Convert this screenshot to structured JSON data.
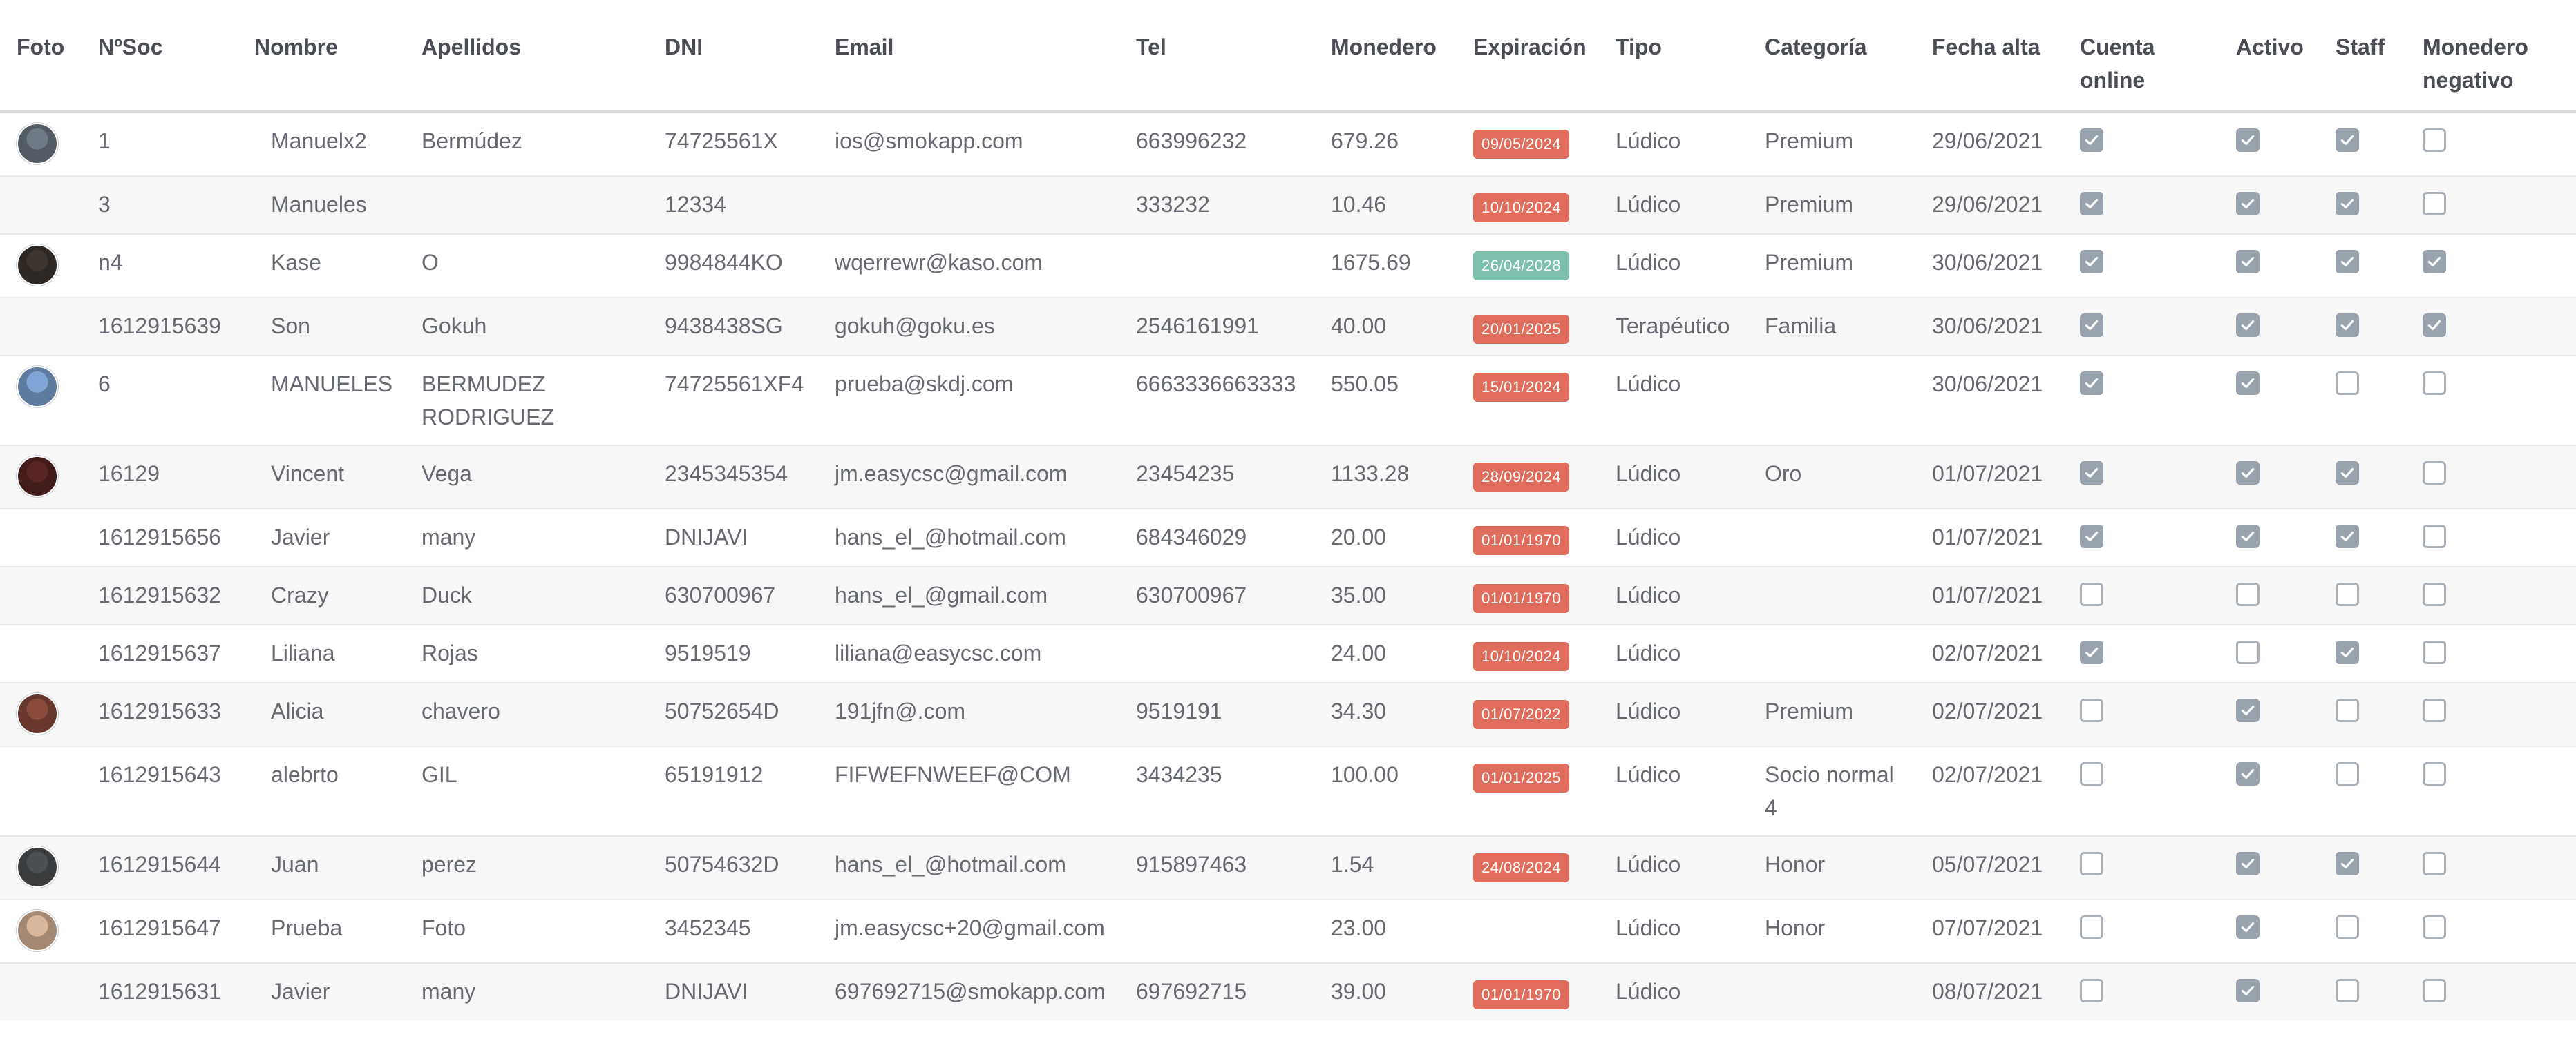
{
  "colors": {
    "expired": "#e06c5c",
    "valid": "#7cc0ad",
    "checkbox_on": "#98a3ad"
  },
  "columns": [
    {
      "key": "foto",
      "label": "Foto"
    },
    {
      "key": "nsoc",
      "label": "NºSoc"
    },
    {
      "key": "nombre",
      "label": "Nombre"
    },
    {
      "key": "apellidos",
      "label": "Apellidos"
    },
    {
      "key": "dni",
      "label": "DNI"
    },
    {
      "key": "email",
      "label": "Email"
    },
    {
      "key": "tel",
      "label": "Tel"
    },
    {
      "key": "monedero",
      "label": "Monedero"
    },
    {
      "key": "expiracion",
      "label": "Expiración"
    },
    {
      "key": "tipo",
      "label": "Tipo"
    },
    {
      "key": "categoria",
      "label": "Categoría"
    },
    {
      "key": "fecha_alta",
      "label": "Fecha alta"
    },
    {
      "key": "cuenta_online",
      "label": "Cuenta online"
    },
    {
      "key": "activo",
      "label": "Activo"
    },
    {
      "key": "staff",
      "label": "Staff"
    },
    {
      "key": "monedero_negativo",
      "label": "Monedero negativo"
    }
  ],
  "rows": [
    {
      "avatar": "#6f7a86",
      "nsoc": "1",
      "nombre": "Manuelx2",
      "apellidos": "Bermúdez",
      "dni": "74725561X",
      "email": "ios@smokapp.com",
      "tel": "663996232",
      "monedero": "679.26",
      "expiracion": "09/05/2024",
      "exp_status": "expired",
      "tipo": "Lúdico",
      "categoria": "Premium",
      "fecha_alta": "29/06/2021",
      "cuenta_online": true,
      "activo": true,
      "staff": true,
      "monedero_negativo": false
    },
    {
      "avatar": null,
      "nsoc": "3",
      "nombre": "Manueles",
      "apellidos": "",
      "dni": "12334",
      "email": "",
      "tel": "333232",
      "monedero": "10.46",
      "expiracion": "10/10/2024",
      "exp_status": "expired",
      "tipo": "Lúdico",
      "categoria": "Premium",
      "fecha_alta": "29/06/2021",
      "cuenta_online": true,
      "activo": true,
      "staff": true,
      "monedero_negativo": false
    },
    {
      "avatar": "#3c3530",
      "nsoc": "n4",
      "nombre": "Kase",
      "apellidos": "O",
      "dni": "9984844KO",
      "email": "wqerrewr@kaso.com",
      "tel": "",
      "monedero": "1675.69",
      "expiracion": "26/04/2028",
      "exp_status": "valid",
      "tipo": "Lúdico",
      "categoria": "Premium",
      "fecha_alta": "30/06/2021",
      "cuenta_online": true,
      "activo": true,
      "staff": true,
      "monedero_negativo": true
    },
    {
      "avatar": null,
      "nsoc": "1612915639",
      "nombre": "Son",
      "apellidos": "Gokuh",
      "dni": "9438438SG",
      "email": "gokuh@goku.es",
      "tel": "2546161991",
      "monedero": "40.00",
      "expiracion": "20/01/2025",
      "exp_status": "expired",
      "tipo": "Terapéutico",
      "categoria": "Familia",
      "fecha_alta": "30/06/2021",
      "cuenta_online": true,
      "activo": true,
      "staff": true,
      "monedero_negativo": true
    },
    {
      "avatar": "#7ea6d6",
      "nsoc": "6",
      "nombre": "MANUELES",
      "apellidos": "BERMUDEZ RODRIGUEZ",
      "dni": "74725561XF4",
      "email": "prueba@skdj.com",
      "tel": "6663336663333",
      "monedero": "550.05",
      "expiracion": "15/01/2024",
      "exp_status": "expired",
      "tipo": "Lúdico",
      "categoria": "",
      "fecha_alta": "30/06/2021",
      "cuenta_online": true,
      "activo": true,
      "staff": false,
      "monedero_negativo": false
    },
    {
      "avatar": "#5a2424",
      "nsoc": "16129",
      "nombre": "Vincent",
      "apellidos": "Vega",
      "dni": "2345345354",
      "email": "jm.easycsc@gmail.com",
      "tel": "23454235",
      "monedero": "1133.28",
      "expiracion": "28/09/2024",
      "exp_status": "expired",
      "tipo": "Lúdico",
      "categoria": "Oro",
      "fecha_alta": "01/07/2021",
      "cuenta_online": true,
      "activo": true,
      "staff": true,
      "monedero_negativo": false
    },
    {
      "avatar": null,
      "nsoc": "1612915656",
      "nombre": "Javier",
      "apellidos": "many",
      "dni": "DNIJAVI",
      "email": "hans_el_@hotmail.com",
      "tel": "684346029",
      "monedero": "20.00",
      "expiracion": "01/01/1970",
      "exp_status": "expired",
      "tipo": "Lúdico",
      "categoria": "",
      "fecha_alta": "01/07/2021",
      "cuenta_online": true,
      "activo": true,
      "staff": true,
      "monedero_negativo": false
    },
    {
      "avatar": null,
      "nsoc": "1612915632",
      "nombre": "Crazy",
      "apellidos": "Duck",
      "dni": "630700967",
      "email": "hans_el_@gmail.com",
      "tel": "630700967",
      "monedero": "35.00",
      "expiracion": "01/01/1970",
      "exp_status": "expired",
      "tipo": "Lúdico",
      "categoria": "",
      "fecha_alta": "01/07/2021",
      "cuenta_online": false,
      "activo": false,
      "staff": false,
      "monedero_negativo": false
    },
    {
      "avatar": null,
      "nsoc": "1612915637",
      "nombre": "Liliana",
      "apellidos": "Rojas",
      "dni": "9519519",
      "email": "liliana@easycsc.com",
      "tel": "",
      "monedero": "24.00",
      "expiracion": "10/10/2024",
      "exp_status": "expired",
      "tipo": "Lúdico",
      "categoria": "",
      "fecha_alta": "02/07/2021",
      "cuenta_online": true,
      "activo": false,
      "staff": true,
      "monedero_negativo": false
    },
    {
      "avatar": "#8a4a3e",
      "nsoc": "1612915633",
      "nombre": "Alicia",
      "apellidos": "chavero",
      "dni": "50752654D",
      "email": "191jfn@.com",
      "tel": "9519191",
      "monedero": "34.30",
      "expiracion": "01/07/2022",
      "exp_status": "expired",
      "tipo": "Lúdico",
      "categoria": "Premium",
      "fecha_alta": "02/07/2021",
      "cuenta_online": false,
      "activo": true,
      "staff": false,
      "monedero_negativo": false
    },
    {
      "avatar": null,
      "nsoc": "1612915643",
      "nombre": "alebrto",
      "apellidos": "GIL",
      "dni": "65191912",
      "email": "FIFWEFNWEEF@COM",
      "tel": "3434235",
      "monedero": "100.00",
      "expiracion": "01/01/2025",
      "exp_status": "expired",
      "tipo": "Lúdico",
      "categoria": "Socio normal 4",
      "fecha_alta": "02/07/2021",
      "cuenta_online": false,
      "activo": true,
      "staff": false,
      "monedero_negativo": false
    },
    {
      "avatar": "#4d5052",
      "nsoc": "1612915644",
      "nombre": "Juan",
      "apellidos": "perez",
      "dni": "50754632D",
      "email": "hans_el_@hotmail.com",
      "tel": "915897463",
      "monedero": "1.54",
      "expiracion": "24/08/2024",
      "exp_status": "expired",
      "tipo": "Lúdico",
      "categoria": "Honor",
      "fecha_alta": "05/07/2021",
      "cuenta_online": false,
      "activo": true,
      "staff": true,
      "monedero_negativo": false
    },
    {
      "avatar": "#d9b79a",
      "nsoc": "1612915647",
      "nombre": "Prueba",
      "apellidos": "Foto",
      "dni": "3452345",
      "email": "jm.easycsc+20@gmail.com",
      "tel": "",
      "monedero": "23.00",
      "expiracion": "",
      "exp_status": "none",
      "tipo": "Lúdico",
      "categoria": "Honor",
      "fecha_alta": "07/07/2021",
      "cuenta_online": false,
      "activo": true,
      "staff": false,
      "monedero_negativo": false
    },
    {
      "avatar": null,
      "nsoc": "1612915631",
      "nombre": "Javier",
      "apellidos": "many",
      "dni": "DNIJAVI",
      "email": "697692715@smokapp.com",
      "tel": "697692715",
      "monedero": "39.00",
      "expiracion": "01/01/1970",
      "exp_status": "expired",
      "tipo": "Lúdico",
      "categoria": "",
      "fecha_alta": "08/07/2021",
      "cuenta_online": false,
      "activo": true,
      "staff": false,
      "monedero_negativo": false
    }
  ]
}
